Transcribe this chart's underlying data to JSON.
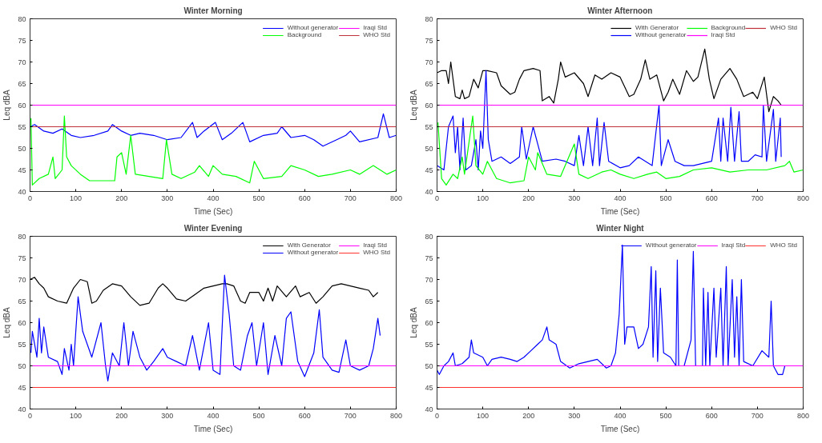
{
  "chart_data": [
    {
      "type": "line",
      "title": "Winter Morning",
      "xlabel": "Time (Sec)",
      "ylabel": "Leq dBA",
      "xlim": [
        0,
        800
      ],
      "ylim": [
        40,
        80
      ],
      "xticks": [
        0,
        100,
        200,
        300,
        400,
        500,
        600,
        700,
        800
      ],
      "yticks": [
        40,
        45,
        50,
        55,
        60,
        65,
        70,
        75,
        80
      ],
      "grid": false,
      "legend": "top right",
      "series": [
        {
          "name": "Without generator",
          "color": "#0000ff",
          "x": [
            0,
            10,
            30,
            50,
            70,
            90,
            110,
            140,
            170,
            180,
            200,
            220,
            240,
            270,
            300,
            330,
            355,
            365,
            380,
            405,
            420,
            440,
            465,
            480,
            510,
            540,
            550,
            570,
            600,
            620,
            640,
            670,
            690,
            700,
            720,
            760,
            772,
            785,
            800
          ],
          "values": [
            55,
            55.5,
            54,
            53.5,
            54.5,
            53,
            52.5,
            53,
            54,
            55.5,
            54,
            53,
            53.5,
            53,
            52,
            52.5,
            56,
            52.5,
            54,
            56,
            52,
            53.5,
            56,
            51.5,
            53,
            53.5,
            55,
            52.5,
            53,
            52,
            50.5,
            52,
            53,
            54,
            51.5,
            52.5,
            58,
            52.5,
            53
          ]
        },
        {
          "name": "Background",
          "color": "#00ff00",
          "x": [
            2,
            5,
            20,
            40,
            50,
            55,
            70,
            75,
            80,
            90,
            110,
            130,
            160,
            185,
            190,
            200,
            210,
            220,
            230,
            260,
            290,
            298,
            310,
            330,
            360,
            370,
            390,
            400,
            420,
            450,
            480,
            490,
            510,
            550,
            570,
            600,
            630,
            660,
            700,
            720,
            750,
            780,
            800
          ],
          "values": [
            57,
            41.5,
            43,
            44,
            48,
            43,
            45,
            57.5,
            48,
            46,
            44,
            42.5,
            42.5,
            42.5,
            48,
            49,
            44,
            53,
            44,
            43.5,
            43,
            52,
            44,
            43,
            44.5,
            46,
            43.5,
            46,
            44,
            43.5,
            42,
            47,
            43,
            43.5,
            46,
            45,
            43.5,
            44,
            45,
            44,
            46,
            44,
            45
          ]
        },
        {
          "name": "Iraqi Std",
          "color": "#ff00ff",
          "x": [
            0,
            800
          ],
          "values": [
            60,
            60
          ]
        },
        {
          "name": "WHO Std",
          "color": "#c0303a",
          "x": [
            0,
            800
          ],
          "values": [
            55,
            55
          ]
        }
      ]
    },
    {
      "type": "line",
      "title": "Winter Afternoon",
      "xlabel": "Time (Sec)",
      "ylabel": "Leq dBA",
      "xlim": [
        0,
        800
      ],
      "ylim": [
        40,
        80
      ],
      "xticks": [
        0,
        100,
        200,
        300,
        400,
        500,
        600,
        700,
        800
      ],
      "yticks": [
        40,
        45,
        50,
        55,
        60,
        65,
        70,
        75,
        80
      ],
      "grid": false,
      "legend": "top right",
      "series": [
        {
          "name": "With Generator",
          "color": "#000000",
          "x": [
            0,
            10,
            20,
            25,
            30,
            35,
            40,
            50,
            55,
            60,
            70,
            80,
            90,
            100,
            110,
            130,
            140,
            160,
            170,
            180,
            190,
            210,
            225,
            230,
            245,
            255,
            265,
            270,
            280,
            300,
            320,
            330,
            345,
            360,
            380,
            400,
            420,
            430,
            445,
            455,
            465,
            480,
            495,
            505,
            515,
            530,
            545,
            560,
            570,
            585,
            595,
            605,
            620,
            640,
            655,
            670,
            690,
            700,
            715,
            725,
            735,
            745,
            752
          ],
          "values": [
            67.5,
            68,
            68,
            65,
            70,
            66,
            62,
            61.5,
            63.5,
            61.5,
            62,
            66,
            64,
            68,
            68,
            67.5,
            64.5,
            62.5,
            63,
            66,
            68,
            68.5,
            68,
            61,
            62,
            60.5,
            66,
            70,
            66.5,
            67.5,
            65,
            62,
            67,
            66,
            67.5,
            66.5,
            62,
            62.5,
            66,
            70.5,
            66,
            67,
            61,
            63,
            66,
            62.5,
            68,
            65.5,
            66.5,
            73,
            66,
            61.5,
            66,
            68.5,
            66,
            62,
            63,
            61.5,
            66.5,
            58.5,
            62,
            61,
            60
          ]
        },
        {
          "name": "Without generator",
          "color": "#0000ff",
          "x": [
            0,
            15,
            25,
            35,
            40,
            45,
            50,
            57,
            63,
            75,
            85,
            90,
            95,
            100,
            107,
            112,
            120,
            140,
            160,
            180,
            185,
            195,
            210,
            220,
            230,
            260,
            280,
            300,
            310,
            320,
            330,
            340,
            350,
            355,
            365,
            375,
            400,
            420,
            440,
            470,
            485,
            490,
            505,
            520,
            540,
            560,
            580,
            600,
            615,
            620,
            625,
            635,
            642,
            650,
            660,
            665,
            680,
            695,
            710,
            713,
            720,
            735,
            740,
            750,
            752
          ],
          "values": [
            46,
            45,
            55,
            57.5,
            49,
            55,
            45,
            57,
            45,
            46,
            52,
            45,
            54,
            50,
            68,
            52,
            47,
            48,
            46.5,
            48,
            55,
            47.5,
            55,
            51,
            47,
            47.5,
            47,
            46,
            53,
            46,
            55,
            46,
            57,
            46,
            56,
            47,
            45.5,
            46,
            48,
            46,
            60,
            46,
            52,
            47,
            46,
            46,
            46.5,
            47,
            57,
            47,
            57,
            47,
            59.5,
            47,
            58.5,
            47,
            47,
            48.5,
            48,
            60,
            47,
            59,
            47,
            57,
            48
          ]
        },
        {
          "name": "Background",
          "color": "#00ff00",
          "x": [
            2,
            10,
            20,
            35,
            45,
            55,
            60,
            78,
            85,
            100,
            110,
            130,
            160,
            190,
            200,
            215,
            220,
            240,
            270,
            300,
            310,
            330,
            360,
            380,
            400,
            430,
            460,
            480,
            500,
            530,
            560,
            600,
            640,
            680,
            720,
            760,
            770,
            780,
            800
          ],
          "values": [
            56,
            43,
            41.5,
            44,
            43,
            48,
            44,
            57.5,
            46,
            44,
            47,
            43,
            42,
            42.5,
            48,
            45,
            49,
            44,
            43.5,
            51,
            44,
            43,
            44.5,
            45,
            44,
            43,
            44,
            44.5,
            43,
            43.5,
            45,
            45.5,
            44.5,
            45,
            45,
            46,
            47,
            44.5,
            45
          ]
        },
        {
          "name": "Iraqi Std",
          "color": "#ff00ff",
          "x": [
            0,
            800
          ],
          "values": [
            60,
            60
          ]
        },
        {
          "name": "WHO Std",
          "color": "#c0303a",
          "x": [
            0,
            800
          ],
          "values": [
            55,
            55
          ]
        }
      ]
    },
    {
      "type": "line",
      "title": "Winter Evening",
      "xlabel": "Time (Sec)",
      "ylabel": "Leq dBA",
      "xlim": [
        0,
        800
      ],
      "ylim": [
        40,
        80
      ],
      "xticks": [
        0,
        100,
        200,
        300,
        400,
        500,
        600,
        700,
        800
      ],
      "yticks": [
        40,
        45,
        50,
        55,
        60,
        65,
        70,
        75,
        80
      ],
      "grid": false,
      "legend": "top right",
      "series": [
        {
          "name": "With Generator",
          "color": "#000000",
          "x": [
            0,
            10,
            20,
            30,
            40,
            60,
            80,
            95,
            110,
            125,
            130,
            135,
            145,
            160,
            180,
            200,
            220,
            240,
            260,
            280,
            290,
            300,
            320,
            340,
            360,
            380,
            400,
            420,
            430,
            445,
            460,
            470,
            480,
            500,
            510,
            520,
            530,
            540,
            560,
            580,
            590,
            610,
            625,
            640,
            660,
            680,
            700,
            720,
            740,
            750,
            760
          ],
          "values": [
            70,
            70.5,
            69,
            68,
            66,
            65,
            64.5,
            68,
            70,
            69.5,
            67,
            64.5,
            65,
            67.5,
            69,
            68.5,
            66,
            64,
            64.5,
            68,
            69,
            68,
            65.5,
            65,
            66.5,
            68,
            68.5,
            69,
            69,
            68.5,
            65,
            64.5,
            67,
            67,
            65,
            68,
            65,
            68.5,
            66,
            68.5,
            66,
            67,
            64.5,
            66,
            68.5,
            69,
            68.5,
            68,
            67.5,
            66,
            67
          ]
        },
        {
          "name": "Without generator",
          "color": "#0000ff",
          "x": [
            2,
            5,
            15,
            20,
            25,
            30,
            40,
            60,
            70,
            75,
            85,
            90,
            95,
            105,
            115,
            125,
            135,
            155,
            165,
            170,
            180,
            195,
            205,
            215,
            225,
            240,
            255,
            270,
            290,
            300,
            320,
            340,
            355,
            370,
            390,
            400,
            415,
            425,
            435,
            445,
            460,
            475,
            485,
            495,
            510,
            520,
            535,
            550,
            560,
            570,
            585,
            600,
            620,
            632,
            640,
            660,
            675,
            690,
            700,
            720,
            740,
            750,
            760,
            765
          ],
          "values": [
            53,
            58,
            52,
            61,
            53,
            59,
            52,
            51,
            48,
            54,
            49,
            55,
            50,
            66,
            58,
            55,
            52,
            60,
            50,
            46.5,
            53,
            50,
            60,
            50,
            58,
            52,
            49,
            51,
            54,
            52,
            51,
            50,
            57,
            49,
            60,
            49,
            48,
            71,
            62,
            50,
            49,
            57,
            60,
            50,
            60,
            48,
            57,
            50,
            61,
            62.5,
            51,
            47.5,
            53,
            63,
            52,
            49,
            48.5,
            56,
            50,
            49,
            50,
            54,
            61,
            57
          ]
        },
        {
          "name": "Iraqi Std",
          "color": "#ff00ff",
          "x": [
            0,
            800
          ],
          "values": [
            50,
            50
          ]
        },
        {
          "name": "WHO Std",
          "color": "#ff3030",
          "x": [
            0,
            800
          ],
          "values": [
            45,
            45
          ]
        }
      ]
    },
    {
      "type": "line",
      "title": "Winter Night",
      "xlabel": "Time (Sec)",
      "ylabel": "Leq dBA",
      "xlim": [
        0,
        800
      ],
      "ylim": [
        40,
        80
      ],
      "xticks": [
        0,
        100,
        200,
        300,
        400,
        500,
        600,
        700,
        800
      ],
      "yticks": [
        40,
        45,
        50,
        55,
        60,
        65,
        70,
        75,
        80
      ],
      "grid": false,
      "legend": "top right",
      "series": [
        {
          "name": "Without generator",
          "color": "#0000ff",
          "x": [
            0,
            5,
            15,
            25,
            35,
            40,
            55,
            70,
            75,
            80,
            100,
            110,
            120,
            140,
            160,
            175,
            190,
            205,
            220,
            230,
            240,
            245,
            260,
            270,
            290,
            310,
            330,
            350,
            370,
            380,
            390,
            398,
            405,
            410,
            415,
            430,
            440,
            450,
            462,
            468,
            472,
            478,
            482,
            488,
            495,
            510,
            522,
            525,
            528,
            540,
            555,
            560,
            565,
            580,
            582,
            587,
            592,
            596,
            605,
            610,
            620,
            625,
            632,
            636,
            645,
            650,
            655,
            660,
            665,
            670,
            690,
            710,
            725,
            730,
            735,
            745,
            755,
            760
          ],
          "values": [
            49,
            48,
            50,
            51,
            53,
            50,
            50.5,
            52,
            56,
            53,
            52,
            50,
            51.5,
            52,
            51.5,
            51,
            52,
            53.5,
            55,
            56,
            59,
            56,
            55,
            51,
            49.5,
            50.5,
            51,
            51.5,
            49.5,
            50,
            53,
            62,
            78,
            55,
            59,
            59,
            54,
            55,
            59,
            73,
            52,
            72,
            51,
            68,
            53,
            52,
            50,
            74.5,
            50,
            50,
            56,
            76.5,
            50,
            50,
            68,
            50,
            67,
            50,
            68,
            52,
            68,
            50,
            73,
            50,
            70,
            52,
            66,
            50,
            70,
            51,
            50,
            53.5,
            52,
            65,
            50,
            48,
            48,
            50
          ]
        },
        {
          "name": "Iraqi Std",
          "color": "#ff00ff",
          "x": [
            0,
            800
          ],
          "values": [
            50,
            50
          ]
        },
        {
          "name": "WHO Std",
          "color": "#ff3030",
          "x": [
            0,
            800
          ],
          "values": [
            45,
            45
          ]
        }
      ]
    }
  ]
}
